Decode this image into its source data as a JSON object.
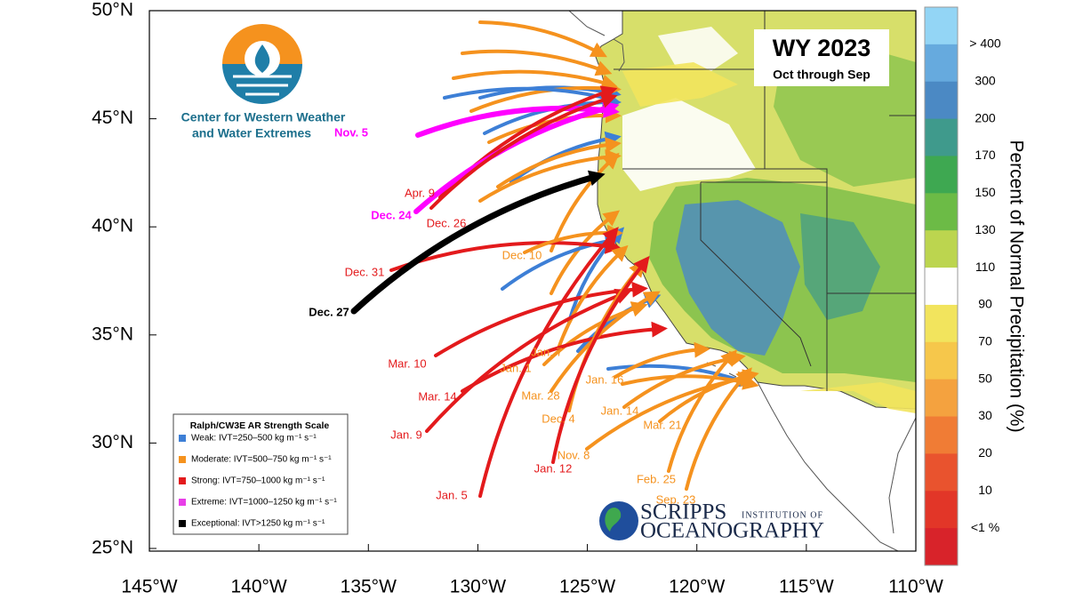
{
  "title": "WY 2023",
  "subtitle": "Oct through Sep",
  "latitude_labels": [
    "50°N",
    "45°N",
    "40°N",
    "35°N",
    "30°N",
    "25°N"
  ],
  "longitude_labels": [
    "145°W",
    "140°W",
    "135°W",
    "130°W",
    "125°W",
    "120°W",
    "115°W",
    "110°W"
  ],
  "colorbar": {
    "title": "Percent of Normal Precipitation (%)",
    "labels": [
      "> 400",
      "300",
      "200",
      "170",
      "150",
      "130",
      "110",
      "90",
      "70",
      "50",
      "30",
      "20",
      "10",
      "<1 %"
    ],
    "colors": [
      "#93d5f5",
      "#66aade",
      "#4b89c4",
      "#3f9a8c",
      "#3ea851",
      "#6cbb46",
      "#bcd54f",
      "#ffffff",
      "#f2e45d",
      "#f6c74b",
      "#f4a23f",
      "#f07c35",
      "#e9532e",
      "#e23628",
      "#d8232a"
    ]
  },
  "legend": {
    "title": "Ralph/CW3E AR Strength Scale",
    "items": [
      {
        "label": "Weak: IVT=250–500 kg m⁻¹ s⁻¹",
        "color": "#3d7fd6"
      },
      {
        "label": "Moderate: IVT=500–750 kg m⁻¹ s⁻¹",
        "color": "#f5921e"
      },
      {
        "label": "Strong: IVT=750–1000 kg m⁻¹ s⁻¹",
        "color": "#e31a1c"
      },
      {
        "label": "Extreme: IVT=1000–1250 kg m⁻¹ s⁻¹",
        "color": "#e83ee8"
      },
      {
        "label": "Exceptional: IVT>1250 kg m⁻¹ s⁻¹",
        "color": "#000000"
      }
    ]
  },
  "events": [
    {
      "label": "Nov. 5",
      "color": "#ff00ff"
    },
    {
      "label": "Apr. 9",
      "color": "#e31a1c"
    },
    {
      "label": "Dec. 24",
      "color": "#ff00ff"
    },
    {
      "label": "Dec. 26",
      "color": "#e31a1c"
    },
    {
      "label": "Dec. 31",
      "color": "#e31a1c"
    },
    {
      "label": "Dec. 27",
      "color": "#000000"
    },
    {
      "label": "Dec. 10",
      "color": "#f5921e"
    },
    {
      "label": "Mar. 10",
      "color": "#e31a1c"
    },
    {
      "label": "Jan. 7",
      "color": "#f5921e"
    },
    {
      "label": "Jan. 1",
      "color": "#f5921e"
    },
    {
      "label": "Mar. 14",
      "color": "#e31a1c"
    },
    {
      "label": "Mar. 28",
      "color": "#f5921e"
    },
    {
      "label": "Jan. 16",
      "color": "#f5921e"
    },
    {
      "label": "Jan. 9",
      "color": "#e31a1c"
    },
    {
      "label": "Dec. 4",
      "color": "#f5921e"
    },
    {
      "label": "Jan. 14",
      "color": "#f5921e"
    },
    {
      "label": "Mar. 21",
      "color": "#f5921e"
    },
    {
      "label": "Nov. 8",
      "color": "#f5921e"
    },
    {
      "label": "Jan. 12",
      "color": "#e31a1c"
    },
    {
      "label": "Feb. 25",
      "color": "#f5921e"
    },
    {
      "label": "Jan. 5",
      "color": "#e31a1c"
    },
    {
      "label": "Sep. 23",
      "color": "#f5921e"
    }
  ],
  "logos": {
    "cw3e": [
      "Center for Western Weather",
      "and Water Extremes"
    ],
    "scripps": [
      "SCRIPPS",
      "INSTITUTION OF",
      "OCEANOGRAPHY"
    ]
  }
}
